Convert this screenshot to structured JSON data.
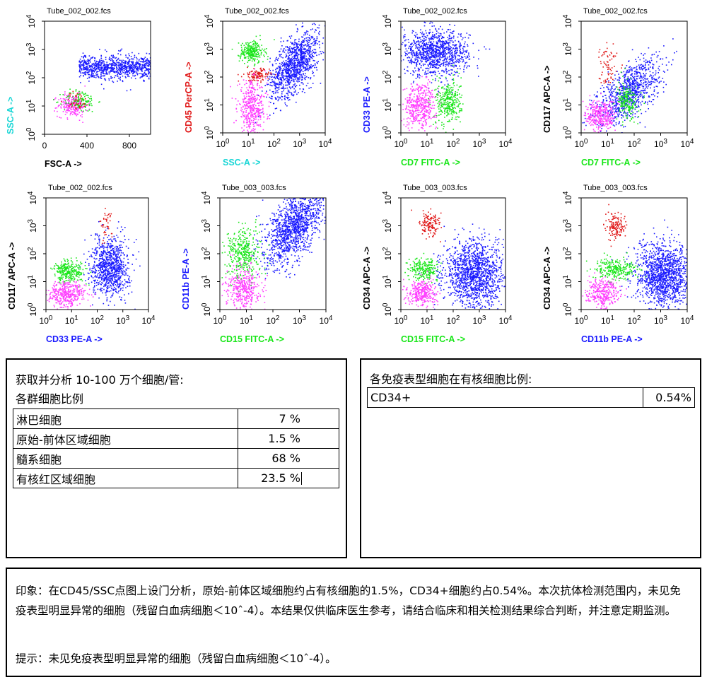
{
  "colors": {
    "blue": "#1a1aff",
    "green": "#19e619",
    "red": "#e01818",
    "magenta": "#ff3cff",
    "cyan": "#1ad6d6",
    "black": "#000000"
  },
  "chart_data": [
    {
      "type": "scatter",
      "title": "Tube_002_002.fcs",
      "xlabel": "FSC-A ->",
      "xlabel_color": "black",
      "ylabel": "SSC-A ->",
      "ylabel_color": "cyan",
      "xscale": "linear",
      "yscale": "log",
      "xticks": [
        "0",
        "400",
        "800"
      ],
      "yticks": [
        "10^0",
        "10^1",
        "10^2",
        "10^3",
        "10^4"
      ],
      "xlim": [
        0,
        1000
      ],
      "ylim_decades": [
        0,
        4
      ]
    },
    {
      "type": "scatter",
      "title": "Tube_002_002.fcs",
      "xlabel": "SSC-A ->",
      "xlabel_color": "cyan",
      "ylabel": "CD45 PerCP-A ->",
      "ylabel_color": "red",
      "xscale": "log",
      "yscale": "log",
      "xticks": [
        "10^0",
        "10^1",
        "10^2",
        "10^3",
        "10^4"
      ],
      "yticks": [
        "10^0",
        "10^1",
        "10^2",
        "10^3",
        "10^4"
      ]
    },
    {
      "type": "scatter",
      "title": "Tube_002_002.fcs",
      "xlabel": "CD7 FITC-A ->",
      "xlabel_color": "green",
      "ylabel": "CD33 PE-A ->",
      "ylabel_color": "blue",
      "xscale": "log",
      "yscale": "log",
      "xticks": [
        "10^0",
        "10^1",
        "10^2",
        "10^3",
        "10^4"
      ],
      "yticks": [
        "10^0",
        "10^1",
        "10^2",
        "10^3",
        "10^4"
      ]
    },
    {
      "type": "scatter",
      "title": "Tube_002_002.fcs",
      "xlabel": "CD7 FITC-A ->",
      "xlabel_color": "green",
      "ylabel": "CD117 APC-A ->",
      "ylabel_color": "black",
      "xscale": "log",
      "yscale": "log",
      "xticks": [
        "10^0",
        "10^1",
        "10^2",
        "10^3",
        "10^4"
      ],
      "yticks": [
        "10^0",
        "10^1",
        "10^2",
        "10^3",
        "10^4"
      ]
    },
    {
      "type": "scatter",
      "title": "Tube_002_002.fcs",
      "xlabel": "CD33 PE-A ->",
      "xlabel_color": "blue",
      "ylabel": "CD117 APC-A ->",
      "ylabel_color": "black",
      "xscale": "log",
      "yscale": "log",
      "xticks": [
        "10^0",
        "10^1",
        "10^2",
        "10^3",
        "10^4"
      ],
      "yticks": [
        "10^0",
        "10^1",
        "10^2",
        "10^3",
        "10^4"
      ]
    },
    {
      "type": "scatter",
      "title": "Tube_003_003.fcs",
      "xlabel": "CD15 FITC-A ->",
      "xlabel_color": "green",
      "ylabel": "CD11b PE-A ->",
      "ylabel_color": "blue",
      "xscale": "log",
      "yscale": "log",
      "xticks": [
        "10^0",
        "10^1",
        "10^2",
        "10^3",
        "10^4"
      ],
      "yticks": [
        "10^0",
        "10^1",
        "10^2",
        "10^3",
        "10^4"
      ]
    },
    {
      "type": "scatter",
      "title": "Tube_003_003.fcs",
      "xlabel": "CD15 FITC-A ->",
      "xlabel_color": "green",
      "ylabel": "CD34 APC-A ->",
      "ylabel_color": "black",
      "xscale": "log",
      "yscale": "log",
      "xticks": [
        "10^0",
        "10^1",
        "10^2",
        "10^3",
        "10^4"
      ],
      "yticks": [
        "10^0",
        "10^1",
        "10^2",
        "10^3",
        "10^4"
      ]
    },
    {
      "type": "scatter",
      "title": "Tube_003_003.fcs",
      "xlabel": "CD11b PE-A ->",
      "xlabel_color": "blue",
      "ylabel": "CD34 APC-A ->",
      "ylabel_color": "black",
      "xscale": "log",
      "yscale": "log",
      "xticks": [
        "10^0",
        "10^1",
        "10^2",
        "10^3",
        "10^4"
      ],
      "yticks": [
        "10^0",
        "10^1",
        "10^2",
        "10^3",
        "10^4"
      ]
    }
  ],
  "left_panel": {
    "title": "获取并分析 10-100 万个细胞/管:",
    "subtitle": "各群细胞比例",
    "rows": [
      {
        "label": "淋巴细胞",
        "value": "7 %"
      },
      {
        "label": "原始-前体区域细胞",
        "value": "1.5 %"
      },
      {
        "label": "髓系细胞",
        "value": "68 %"
      },
      {
        "label": "有核红区域细胞",
        "value": "23.5 %"
      }
    ]
  },
  "right_panel": {
    "title": "各免疫表型细胞在有核细胞比例:",
    "rows": [
      {
        "label": "CD34+",
        "value": "0.54%"
      }
    ]
  },
  "impression": "印象：在CD45/SSC点图上设门分析，原始-前体区域细胞约占有核细胞的1.5%，CD34+细胞约占0.54%。本次抗体检测范围内，未见免疫表型明显异常的细胞（残留白血病细胞＜10ˆ-4）。本结果仅供临床医生参考，请结合临床和相关检测结果综合判断，并注意定期监测。",
  "tip": "提示：未见免疫表型明显异常的细胞（残留白血病细胞＜10ˆ-4）。"
}
